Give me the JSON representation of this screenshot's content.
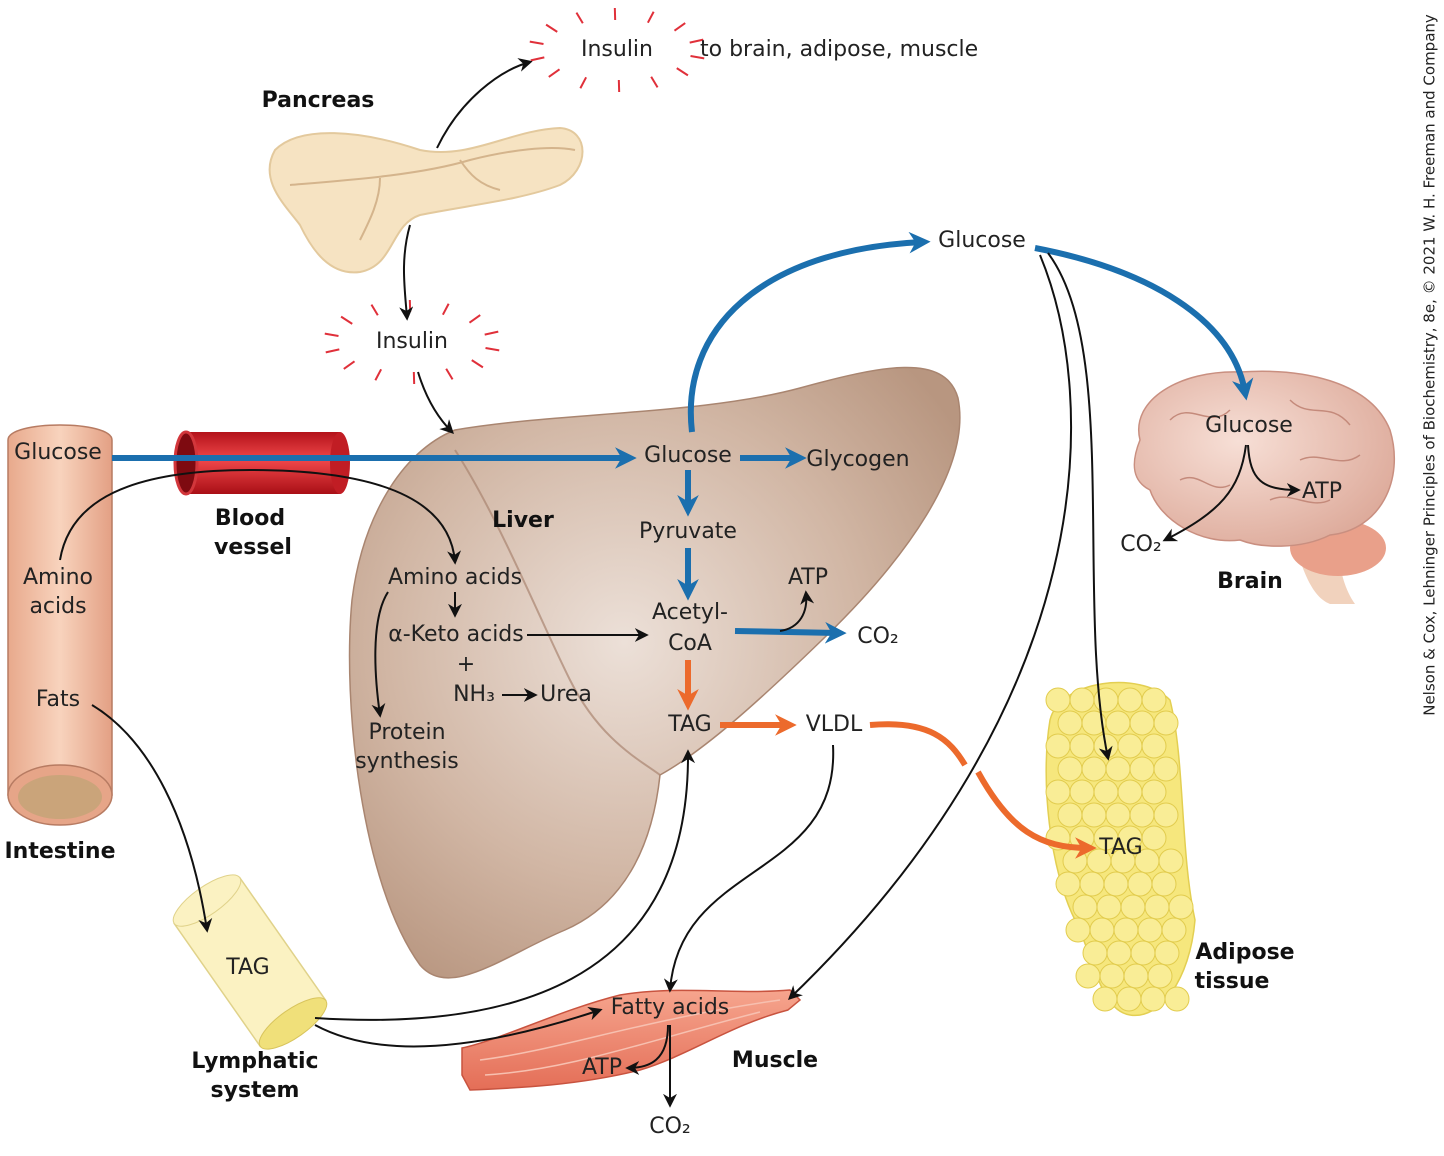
{
  "insulin_release": {
    "label": "Insulin",
    "destination": "to brain, adipose, muscle"
  },
  "pancreas": {
    "label": "Pancreas",
    "insulin": "Insulin"
  },
  "intestine": {
    "label": "Intestine",
    "glucose": "Glucose",
    "amino_acids": [
      "Amino",
      "acids"
    ],
    "fats": "Fats"
  },
  "blood_vessel": {
    "label": [
      "Blood",
      "vessel"
    ]
  },
  "liver": {
    "label": "Liver",
    "amino_acids": "Amino acids",
    "keto_acids": "α-Keto acids",
    "plus": "+",
    "nh3": "NH₃",
    "urea": "Urea",
    "protein_synthesis": [
      "Protein",
      "synthesis"
    ],
    "glucose": "Glucose",
    "glycogen": "Glycogen",
    "pyruvate": "Pyruvate",
    "acetyl_coa": [
      "Acetyl-",
      "CoA"
    ],
    "atp": "ATP",
    "co2": "CO₂",
    "tag": "TAG",
    "vldl": "VLDL"
  },
  "circulation": {
    "glucose": "Glucose"
  },
  "brain": {
    "label": "Brain",
    "glucose": "Glucose",
    "atp": "ATP",
    "co2": "CO₂"
  },
  "adipose": {
    "label": [
      "Adipose",
      "tissue"
    ],
    "tag": "TAG"
  },
  "lymphatic": {
    "label": [
      "Lymphatic",
      "system"
    ],
    "tag": "TAG"
  },
  "muscle": {
    "label": "Muscle",
    "fatty_acids": "Fatty acids",
    "atp": "ATP",
    "co2": "CO₂"
  },
  "credit": "Nelson & Cox, Lehninger Principles of Biochemistry, 8e, © 2021 W. H. Freeman and Company"
}
